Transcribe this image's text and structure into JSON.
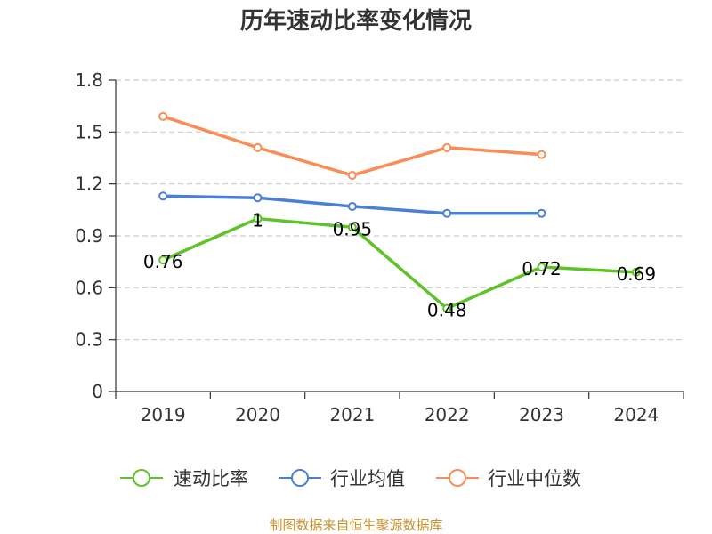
{
  "chart_data": {
    "type": "line",
    "title": "历年速动比率变化情况",
    "xlabel": "",
    "ylabel": "",
    "categories": [
      "2019",
      "2020",
      "2021",
      "2022",
      "2023",
      "2024"
    ],
    "ylim": [
      0,
      1.8
    ],
    "yticks": [
      "0",
      "0.3",
      "0.6",
      "0.9",
      "1.2",
      "1.5",
      "1.8"
    ],
    "grid": true,
    "legend_position": "bottom",
    "series": [
      {
        "name": "速动比率",
        "color": "#5ec229",
        "values": [
          0.76,
          1.0,
          0.95,
          0.48,
          0.72,
          0.69
        ],
        "labels": [
          "0.76",
          "1",
          "0.95",
          "0.48",
          "0.72",
          "0.69"
        ]
      },
      {
        "name": "行业均值",
        "color": "#4a7fd6",
        "values": [
          1.13,
          1.12,
          1.07,
          1.03,
          1.03,
          null
        ]
      },
      {
        "name": "行业中位数",
        "color": "#fa8c55",
        "values": [
          1.59,
          1.41,
          1.25,
          1.41,
          1.37,
          null
        ]
      }
    ]
  },
  "source": "制图数据来自恒生聚源数据库"
}
